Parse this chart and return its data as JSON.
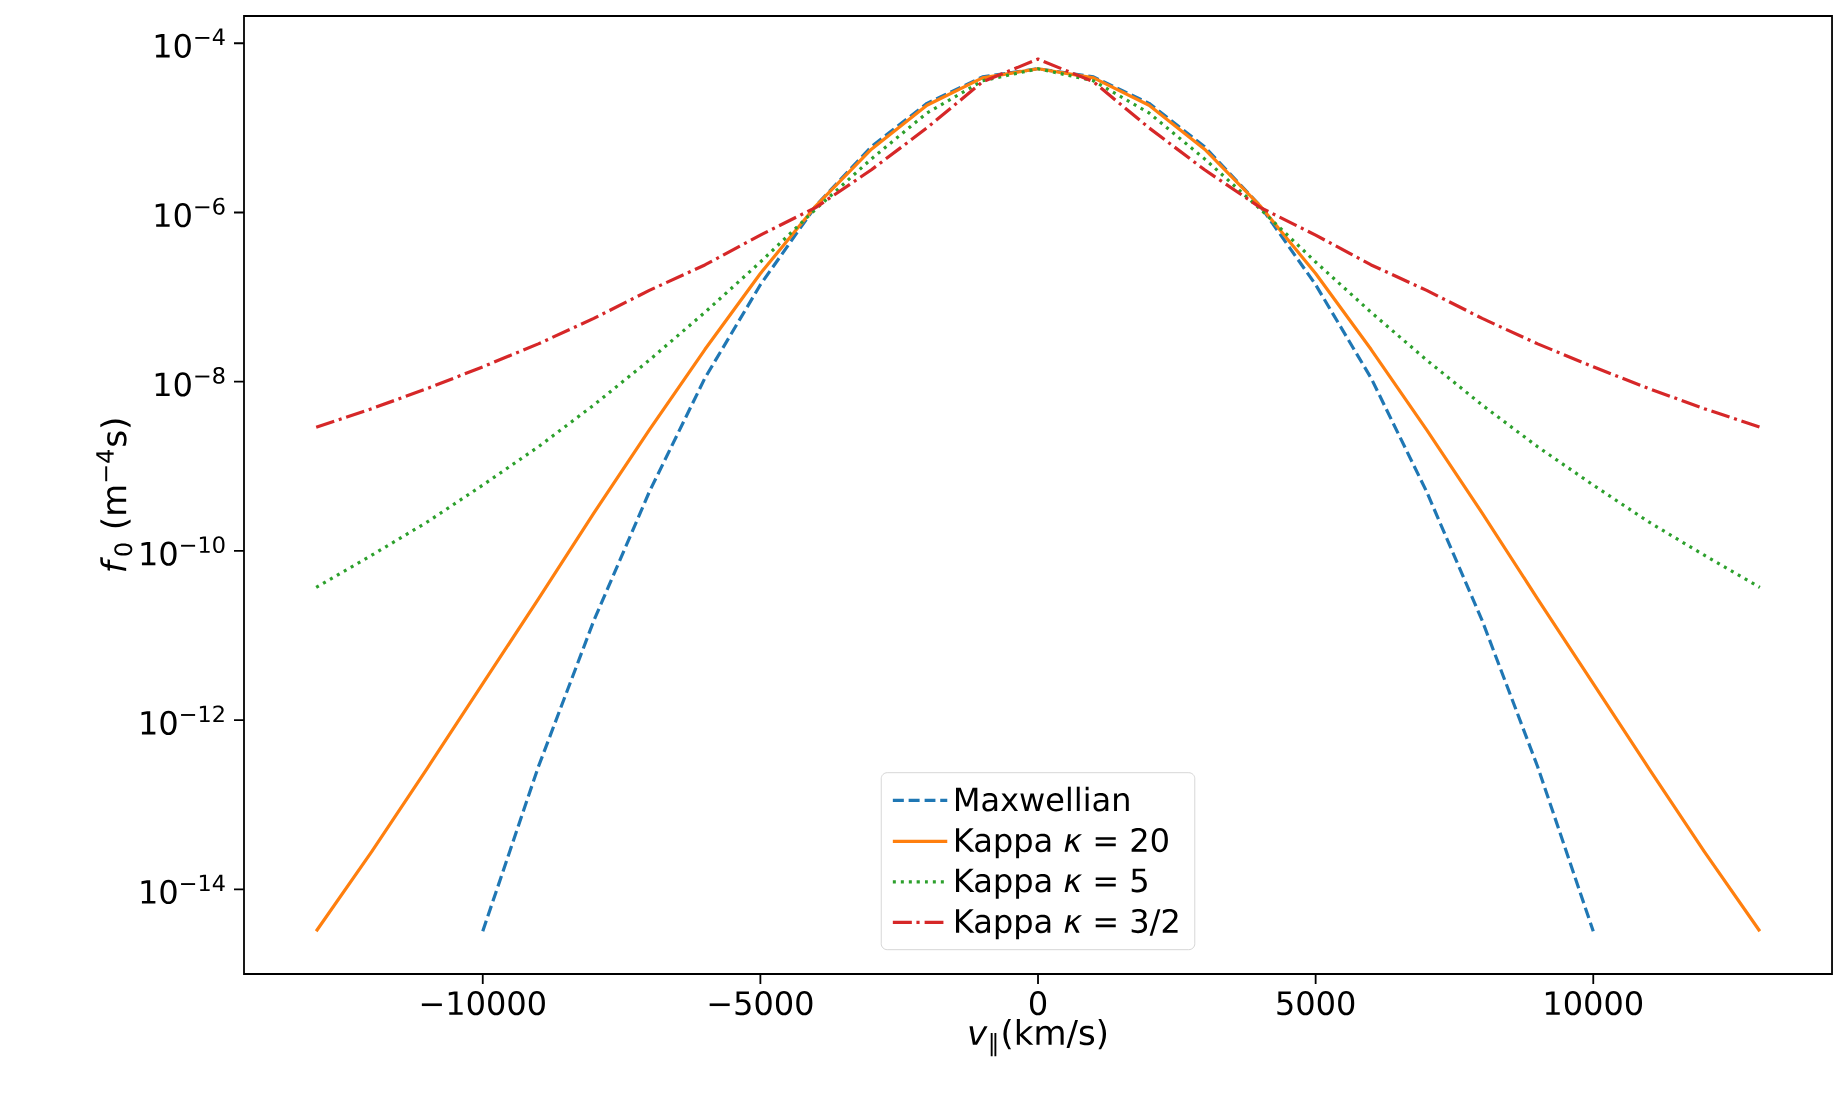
{
  "chart_data": {
    "type": "line",
    "xlabel": "*v*$_{∥}$(km/s)",
    "ylabel": "*f*$_{0}$ (m$^{−4}$s)",
    "log": "y",
    "legend": "bottom",
    "xlim": [
      -14300,
      14300
    ],
    "ylim": [
      1e-15,
      0.00021
    ],
    "xticks": [
      {
        "value": -10000,
        "label": "−10000"
      },
      {
        "value": -5000,
        "label": "−5000"
      },
      0,
      5000,
      10000
    ],
    "yticks": [
      {
        "value": 1e-14,
        "label": "10$^{−14}$"
      },
      {
        "value": 1e-12,
        "label": "10$^{−12}$"
      },
      {
        "value": 1e-10,
        "label": "10$^{−10}$"
      },
      {
        "value": 1e-08,
        "label": "10$^{−8}$"
      },
      {
        "value": 1e-06,
        "label": "10$^{−6}$"
      },
      {
        "value": 0.0001,
        "label": "10$^{−4}$"
      }
    ],
    "x": [
      -13000,
      -12000,
      -11000,
      -10000,
      -9000,
      -8000,
      -7000,
      -6000,
      -5000,
      -4000,
      -3000,
      -2000,
      -1000,
      0,
      1000,
      2000,
      3000,
      4000,
      5000,
      6000,
      7000,
      8000,
      9000,
      10000,
      11000,
      12000,
      13000
    ],
    "series": [
      {
        "name": "Maxwellian",
        "color": "#1f77b4",
        "line_style": "dashed",
        "x": [
          -10000,
          -9000,
          -8000,
          -7000,
          -6000,
          -5000,
          -4000,
          -3000,
          -2000,
          -1000,
          0,
          1000,
          2000,
          3000,
          4000,
          5000,
          6000,
          7000,
          8000,
          9000,
          10000
        ],
        "values": [
          3.2e-15,
          2.8e-13,
          1.5e-11,
          5e-10,
          1.1e-08,
          1.4e-07,
          1.2e-06,
          6e-06,
          1.95e-05,
          4e-05,
          5e-05,
          4e-05,
          1.95e-05,
          6e-06,
          1.2e-06,
          1.4e-07,
          1.1e-08,
          5e-10,
          1.5e-11,
          2.8e-13,
          3.2e-15
        ]
      },
      {
        "name": "Kappa *κ* = 20",
        "color": "#ff7f0e",
        "line_style": "solid",
        "values": [
          3.2e-15,
          2.8e-14,
          2.7e-13,
          2.7e-12,
          2.7e-11,
          2.8e-10,
          2.7e-09,
          2.4e-08,
          1.9e-07,
          1.2e-06,
          5.6e-06,
          1.85e-05,
          3.9e-05,
          5e-05,
          3.9e-05,
          1.85e-05,
          5.6e-06,
          1.2e-06,
          1.9e-07,
          2.4e-08,
          2.7e-09,
          2.8e-10,
          2.7e-11,
          2.7e-12,
          2.7e-13,
          2.8e-14,
          3.2e-15
        ]
      },
      {
        "name": "Kappa *κ* = 5",
        "color": "#2ca02c",
        "line_style": "dotted",
        "values": [
          3.7e-11,
          8.9e-11,
          2.2e-10,
          6e-10,
          1.7e-09,
          5.3e-09,
          1.8e-08,
          6.6e-08,
          2.6e-07,
          1.1e-06,
          4.3e-06,
          1.5e-05,
          3.6e-05,
          5e-05,
          3.6e-05,
          1.5e-05,
          4.3e-06,
          1.1e-06,
          2.6e-07,
          6.6e-08,
          1.8e-08,
          5.3e-09,
          1.7e-09,
          6e-10,
          2.2e-10,
          8.9e-11,
          3.7e-11
        ]
      },
      {
        "name": "Kappa *κ* = 3/2",
        "color": "#d62728",
        "line_style": "dashdot",
        "values": [
          2.9e-09,
          4.8e-09,
          8.3e-09,
          1.5e-08,
          2.8e-08,
          5.6e-08,
          1.2e-07,
          2.4e-07,
          5.4e-07,
          1.15e-06,
          3.2e-06,
          1e-05,
          3.5e-05,
          6.5e-05,
          3.5e-05,
          1e-05,
          3.2e-06,
          1.15e-06,
          5.4e-07,
          2.4e-07,
          1.2e-07,
          5.6e-08,
          2.8e-08,
          1.5e-08,
          8.3e-09,
          4.8e-09,
          2.9e-09
        ]
      }
    ]
  }
}
